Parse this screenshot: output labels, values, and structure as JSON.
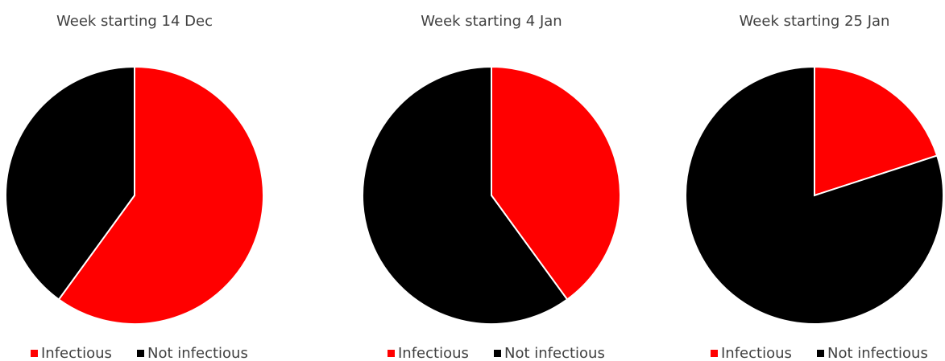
{
  "chart_data": [
    {
      "type": "pie",
      "title": "Week starting 14 Dec",
      "categories": [
        "Infectious",
        "Not infectious"
      ],
      "values": [
        60,
        40
      ],
      "colors": [
        "#ff0000",
        "#000000"
      ]
    },
    {
      "type": "pie",
      "title": "Week starting 4 Jan",
      "categories": [
        "Infectious",
        "Not infectious"
      ],
      "values": [
        40,
        60
      ],
      "colors": [
        "#ff0000",
        "#000000"
      ]
    },
    {
      "type": "pie",
      "title": "Week starting 25 Jan",
      "categories": [
        "Infectious",
        "Not infectious"
      ],
      "values": [
        20,
        80
      ],
      "colors": [
        "#ff0000",
        "#000000"
      ]
    }
  ]
}
